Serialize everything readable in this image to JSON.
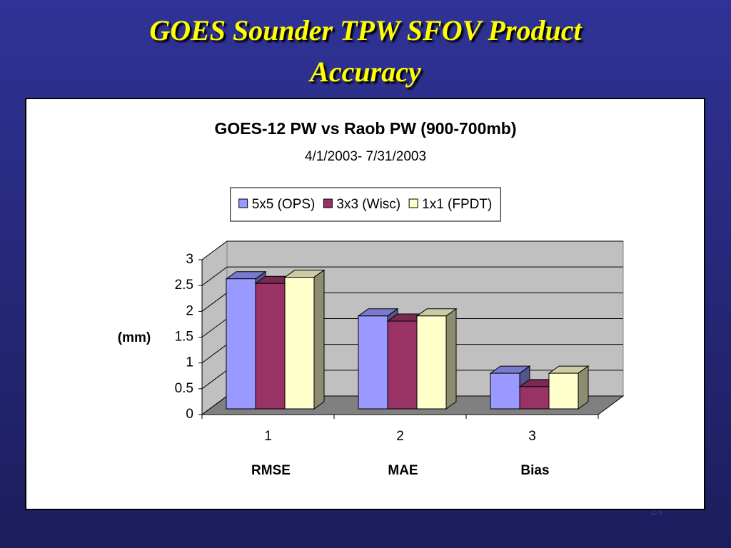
{
  "slide": {
    "title": "GOES Sounder TPW SFOV Product Accuracy",
    "number": "23"
  },
  "chart_data": {
    "type": "bar3d",
    "title": "GOES-12 PW vs Raob PW (900-700mb)",
    "subtitle": "4/1/2003- 7/31/2003",
    "y_label": "(mm)",
    "categories": [
      "1",
      "2",
      "3"
    ],
    "category_labels": [
      "RMSE",
      "MAE",
      "Bias"
    ],
    "series": [
      {
        "name": "5x5 (OPS)",
        "color": "#9999ff",
        "values": [
          2.52,
          1.8,
          0.69
        ]
      },
      {
        "name": "3x3 (Wisc)",
        "color": "#993366",
        "values": [
          2.43,
          1.7,
          0.43
        ]
      },
      {
        "name": "1x1 (FPDT)",
        "color": "#ffffcc",
        "values": [
          2.55,
          1.8,
          0.69
        ]
      }
    ],
    "ylim": [
      0,
      3
    ],
    "yticks": [
      0,
      0.5,
      1,
      1.5,
      2,
      2.5,
      3
    ],
    "grid": true,
    "legend": "top"
  }
}
